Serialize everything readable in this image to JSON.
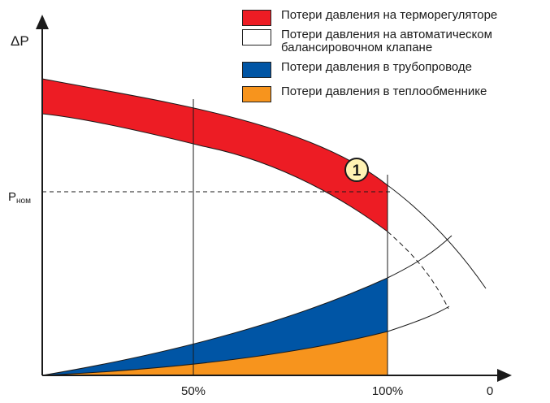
{
  "diagram": {
    "y_axis_label": "ΔP",
    "nominal_label_main": "P",
    "nominal_label_sub": "ном",
    "x_ticks": [
      "50%",
      "100%",
      "0"
    ],
    "marker_label": "1"
  },
  "legend": [
    {
      "label": "Потери давления на терморегуляторе",
      "color": "#ed1c24"
    },
    {
      "label_line1": "Потери давления на автоматическом",
      "label_line2": "балансировочном клапане",
      "color": "#ffffff"
    },
    {
      "label": "Потери давления в трубопроводе",
      "color": "#0055a5"
    },
    {
      "label": "Потери давления в теплообменнике",
      "color": "#f7941d"
    }
  ],
  "colors": {
    "red": "#ed1c24",
    "blue": "#0055a5",
    "orange": "#f7941d",
    "marker_fill": "#fff2b3",
    "line": "#1a1a1a"
  }
}
